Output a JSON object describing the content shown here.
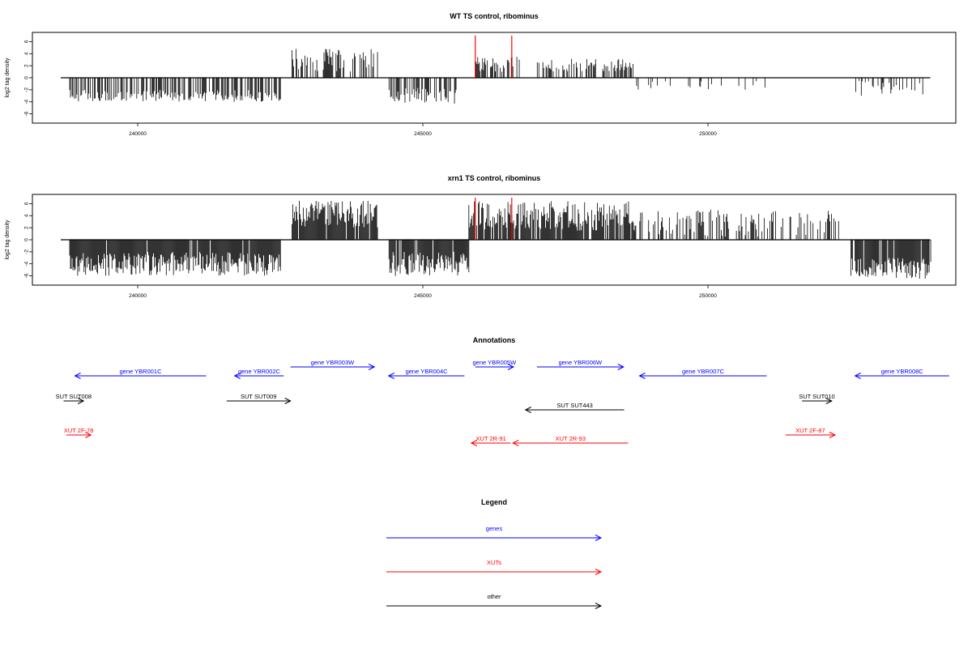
{
  "chart_data": [
    {
      "type": "bar",
      "title": "WT TS control, ribominus",
      "ylabel": "log2 tag density",
      "xlabel": "",
      "xlim": [
        238500,
        253900
      ],
      "ylim": [
        -7,
        7
      ],
      "yticks": [
        -6,
        -4,
        -2,
        0,
        2,
        4,
        6
      ],
      "xticks": [
        240000,
        245000,
        250000
      ],
      "grid": false,
      "marker_color": "#ff0000",
      "marker_positions": [
        245920,
        246560
      ],
      "marker_height": 7,
      "density_blocks": [
        {
          "start": 238800,
          "end": 242500,
          "strand": "minus",
          "min": 2,
          "max": 4,
          "density": 0.55
        },
        {
          "start": 242700,
          "end": 244200,
          "strand": "plus",
          "min": 1,
          "max": 4.8,
          "density": 0.55
        },
        {
          "start": 244400,
          "end": 245600,
          "strand": "minus",
          "min": 1.5,
          "max": 4.3,
          "density": 0.6
        },
        {
          "start": 245900,
          "end": 246700,
          "strand": "plus",
          "min": 1,
          "max": 3.5,
          "density": 0.6
        },
        {
          "start": 247000,
          "end": 248700,
          "strand": "plus",
          "min": 1,
          "max": 3.2,
          "density": 0.45
        },
        {
          "start": 248700,
          "end": 251000,
          "strand": "minus",
          "min": 0.5,
          "max": 2,
          "density": 0.08
        },
        {
          "start": 252500,
          "end": 253800,
          "strand": "minus",
          "min": 0.5,
          "max": 3,
          "density": 0.3
        }
      ]
    },
    {
      "type": "bar",
      "title": "xrn1 TS control, ribominus",
      "ylabel": "log2 tag density",
      "xlabel": "",
      "xlim": [
        238500,
        253900
      ],
      "ylim": [
        -7,
        7
      ],
      "yticks": [
        -6,
        -4,
        -2,
        0,
        2,
        4,
        6
      ],
      "xticks": [
        240000,
        245000,
        250000
      ],
      "grid": false,
      "marker_color": "#ff0000",
      "marker_positions": [
        245920,
        246560
      ],
      "marker_height": 7,
      "density_blocks": [
        {
          "start": 238800,
          "end": 242500,
          "strand": "minus",
          "min": 2,
          "max": 6,
          "density": 0.95
        },
        {
          "start": 242700,
          "end": 244200,
          "strand": "plus",
          "min": 2,
          "max": 6.5,
          "density": 0.95
        },
        {
          "start": 244400,
          "end": 245800,
          "strand": "minus",
          "min": 2,
          "max": 6,
          "density": 0.95
        },
        {
          "start": 245800,
          "end": 248700,
          "strand": "plus",
          "min": 1.5,
          "max": 6.5,
          "density": 0.9
        },
        {
          "start": 248700,
          "end": 252300,
          "strand": "plus",
          "min": 0.5,
          "max": 5,
          "density": 0.45
        },
        {
          "start": 252500,
          "end": 253900,
          "strand": "minus",
          "min": 3,
          "max": 6.5,
          "density": 0.95
        }
      ]
    }
  ],
  "annotations": {
    "title": "Annotations",
    "genes_color": "#0000ff",
    "xuts_color": "#ff0000",
    "other_color": "#000000",
    "features": [
      {
        "label": "gene YBR001C",
        "class": "genes",
        "strand": "-",
        "start": 238900,
        "end": 241200
      },
      {
        "label": "gene YBR002C",
        "class": "genes",
        "strand": "-",
        "start": 241700,
        "end": 242560
      },
      {
        "label": "gene YBR003W",
        "class": "genes",
        "strand": "+",
        "start": 242680,
        "end": 244150
      },
      {
        "label": "gene YBR004C",
        "class": "genes",
        "strand": "-",
        "start": 244400,
        "end": 245730
      },
      {
        "label": "gene YBR005W",
        "class": "genes",
        "strand": "+",
        "start": 245920,
        "end": 246590
      },
      {
        "label": "gene YBR006W",
        "class": "genes",
        "strand": "+",
        "start": 247000,
        "end": 248520
      },
      {
        "label": "gene YBR007C",
        "class": "genes",
        "strand": "-",
        "start": 248800,
        "end": 251030
      },
      {
        "label": "gene YBR008C",
        "class": "genes",
        "strand": "-",
        "start": 252580,
        "end": 254230
      },
      {
        "label": "SUT SUT008",
        "class": "other",
        "strand": "+",
        "start": 238700,
        "end": 239050
      },
      {
        "label": "SUT SUT009",
        "class": "other",
        "strand": "+",
        "start": 241560,
        "end": 242680
      },
      {
        "label": "SUT SUT443",
        "class": "other",
        "strand": "-",
        "start": 246800,
        "end": 248530
      },
      {
        "label": "SUT SUT010",
        "class": "other",
        "strand": "+",
        "start": 251650,
        "end": 252170
      },
      {
        "label": "XUT 2F-78",
        "class": "xuts",
        "strand": "+",
        "start": 238750,
        "end": 239180
      },
      {
        "label": "XUT 2R-91",
        "class": "xuts",
        "strand": "-",
        "start": 245850,
        "end": 246540
      },
      {
        "label": "XUT 2R-93",
        "class": "xuts",
        "strand": "-",
        "start": 246580,
        "end": 248600
      },
      {
        "label": "XUT 2F-87",
        "class": "xuts",
        "strand": "+",
        "start": 251360,
        "end": 252230
      }
    ]
  },
  "legend": {
    "title": "Legend",
    "items": [
      {
        "label": "genes",
        "color": "#0000ff"
      },
      {
        "label": "XUTs",
        "color": "#ff0000"
      },
      {
        "label": "other",
        "color": "#000000"
      }
    ]
  }
}
